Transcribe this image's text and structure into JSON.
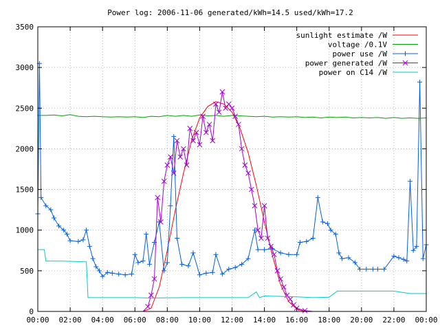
{
  "chart_data": {
    "type": "line",
    "title": "Power log: 2006-11-06 generated/kWh=14.5 used/kWh=17.2",
    "xlabel": "",
    "ylabel": "",
    "xlim": [
      0,
      24
    ],
    "ylim": [
      0,
      3500
    ],
    "x_ticks": [
      {
        "value": 0,
        "label": "00:00"
      },
      {
        "value": 2,
        "label": "02:00"
      },
      {
        "value": 4,
        "label": "04:00"
      },
      {
        "value": 6,
        "label": "06:00"
      },
      {
        "value": 8,
        "label": "08:00"
      },
      {
        "value": 10,
        "label": "10:00"
      },
      {
        "value": 12,
        "label": "12:00"
      },
      {
        "value": 14,
        "label": "14:00"
      },
      {
        "value": 16,
        "label": "16:00"
      },
      {
        "value": 18,
        "label": "18:00"
      },
      {
        "value": 20,
        "label": "20:00"
      },
      {
        "value": 22,
        "label": "22:00"
      },
      {
        "value": 24,
        "label": "00:00"
      }
    ],
    "y_ticks": [
      {
        "value": 0,
        "label": "0"
      },
      {
        "value": 500,
        "label": "500"
      },
      {
        "value": 1000,
        "label": "1000"
      },
      {
        "value": 1500,
        "label": "1500"
      },
      {
        "value": 2000,
        "label": "2000"
      },
      {
        "value": 2500,
        "label": "2500"
      },
      {
        "value": 3000,
        "label": "3000"
      },
      {
        "value": 3500,
        "label": "3500"
      }
    ],
    "grid": true,
    "legend_position": "top-right",
    "series": [
      {
        "name": "sunlight estimate /W",
        "color": "#ff0000",
        "marker": "none",
        "points": [
          [
            0,
            0
          ],
          [
            6.5,
            0
          ],
          [
            7,
            40
          ],
          [
            7.5,
            300
          ],
          [
            8,
            750
          ],
          [
            8.5,
            1250
          ],
          [
            9,
            1700
          ],
          [
            9.5,
            2100
          ],
          [
            10,
            2380
          ],
          [
            10.5,
            2520
          ],
          [
            11,
            2580
          ],
          [
            11.5,
            2550
          ],
          [
            12,
            2450
          ],
          [
            12.5,
            2250
          ],
          [
            13,
            1950
          ],
          [
            13.5,
            1550
          ],
          [
            14,
            1100
          ],
          [
            14.5,
            680
          ],
          [
            15,
            330
          ],
          [
            15.5,
            120
          ],
          [
            16,
            30
          ],
          [
            16.5,
            0
          ],
          [
            24,
            0
          ]
        ]
      },
      {
        "name": "voltage /0.1V",
        "color": "#00a000",
        "marker": "none",
        "points": [
          [
            0,
            2410
          ],
          [
            0.5,
            2410
          ],
          [
            1,
            2415
          ],
          [
            1.5,
            2405
          ],
          [
            2,
            2420
          ],
          [
            2.5,
            2400
          ],
          [
            3,
            2395
          ],
          [
            3.5,
            2400
          ],
          [
            4,
            2395
          ],
          [
            4.5,
            2390
          ],
          [
            5,
            2395
          ],
          [
            5.5,
            2390
          ],
          [
            6,
            2395
          ],
          [
            6.5,
            2385
          ],
          [
            7,
            2400
          ],
          [
            7.5,
            2395
          ],
          [
            8,
            2410
          ],
          [
            8.5,
            2400
          ],
          [
            9,
            2410
          ],
          [
            9.5,
            2400
          ],
          [
            10,
            2415
          ],
          [
            10.5,
            2405
          ],
          [
            11,
            2410
          ],
          [
            11.5,
            2400
          ],
          [
            12,
            2410
          ],
          [
            12.5,
            2405
          ],
          [
            13,
            2400
          ],
          [
            13.5,
            2395
          ],
          [
            14,
            2400
          ],
          [
            14.5,
            2390
          ],
          [
            15,
            2395
          ],
          [
            15.5,
            2390
          ],
          [
            16,
            2395
          ],
          [
            16.5,
            2385
          ],
          [
            17,
            2390
          ],
          [
            17.5,
            2380
          ],
          [
            18,
            2390
          ],
          [
            18.5,
            2385
          ],
          [
            19,
            2390
          ],
          [
            19.5,
            2380
          ],
          [
            20,
            2385
          ],
          [
            20.5,
            2380
          ],
          [
            21,
            2385
          ],
          [
            21.5,
            2375
          ],
          [
            22,
            2385
          ],
          [
            22.5,
            2375
          ],
          [
            23,
            2380
          ],
          [
            23.5,
            2375
          ],
          [
            24,
            2380
          ]
        ]
      },
      {
        "name": "power use /W",
        "color": "#0060e0",
        "marker": "plus",
        "points": [
          [
            0,
            1200
          ],
          [
            0.1,
            3050
          ],
          [
            0.2,
            1400
          ],
          [
            0.5,
            1300
          ],
          [
            0.8,
            1250
          ],
          [
            1,
            1150
          ],
          [
            1.3,
            1050
          ],
          [
            1.6,
            1000
          ],
          [
            1.8,
            950
          ],
          [
            2,
            870
          ],
          [
            2.5,
            860
          ],
          [
            2.8,
            880
          ],
          [
            3,
            1000
          ],
          [
            3.2,
            800
          ],
          [
            3.4,
            650
          ],
          [
            3.6,
            550
          ],
          [
            3.8,
            500
          ],
          [
            4,
            430
          ],
          [
            4.3,
            480
          ],
          [
            4.6,
            470
          ],
          [
            5,
            460
          ],
          [
            5.4,
            450
          ],
          [
            5.8,
            460
          ],
          [
            6,
            700
          ],
          [
            6.2,
            600
          ],
          [
            6.5,
            620
          ],
          [
            6.7,
            950
          ],
          [
            6.9,
            580
          ],
          [
            7.2,
            850
          ],
          [
            7.5,
            1100
          ],
          [
            7.8,
            500
          ],
          [
            8,
            600
          ],
          [
            8.2,
            1300
          ],
          [
            8.4,
            2150
          ],
          [
            8.6,
            900
          ],
          [
            8.9,
            580
          ],
          [
            9.3,
            560
          ],
          [
            9.6,
            720
          ],
          [
            10,
            450
          ],
          [
            10.4,
            470
          ],
          [
            10.8,
            480
          ],
          [
            11,
            700
          ],
          [
            11.4,
            460
          ],
          [
            11.8,
            520
          ],
          [
            12.2,
            540
          ],
          [
            12.6,
            580
          ],
          [
            13,
            650
          ],
          [
            13.4,
            1000
          ],
          [
            13.6,
            760
          ],
          [
            14,
            760
          ],
          [
            14.5,
            770
          ],
          [
            15,
            720
          ],
          [
            15.5,
            700
          ],
          [
            16,
            700
          ],
          [
            16.2,
            850
          ],
          [
            16.6,
            860
          ],
          [
            17,
            900
          ],
          [
            17.3,
            1400
          ],
          [
            17.6,
            1100
          ],
          [
            17.9,
            1080
          ],
          [
            18.1,
            1000
          ],
          [
            18.4,
            950
          ],
          [
            18.6,
            720
          ],
          [
            18.8,
            650
          ],
          [
            19.2,
            660
          ],
          [
            19.6,
            600
          ],
          [
            19.9,
            520
          ],
          [
            20.3,
            520
          ],
          [
            20.7,
            520
          ],
          [
            21,
            520
          ],
          [
            21.4,
            520
          ],
          [
            22,
            680
          ],
          [
            22.3,
            660
          ],
          [
            22.6,
            640
          ],
          [
            22.8,
            620
          ],
          [
            23,
            1600
          ],
          [
            23.2,
            750
          ],
          [
            23.4,
            800
          ],
          [
            23.6,
            2820
          ],
          [
            23.8,
            650
          ],
          [
            24,
            820
          ]
        ]
      },
      {
        "name": "power generated /W",
        "color": "#a000d0",
        "marker": "cross",
        "points": [
          [
            0,
            0
          ],
          [
            6.5,
            0
          ],
          [
            6.8,
            60
          ],
          [
            7,
            200
          ],
          [
            7.2,
            400
          ],
          [
            7.4,
            1400
          ],
          [
            7.6,
            1100
          ],
          [
            7.8,
            1600
          ],
          [
            8,
            1800
          ],
          [
            8.2,
            1900
          ],
          [
            8.4,
            1700
          ],
          [
            8.6,
            2100
          ],
          [
            8.8,
            1900
          ],
          [
            9,
            2000
          ],
          [
            9.2,
            1800
          ],
          [
            9.4,
            2250
          ],
          [
            9.6,
            2100
          ],
          [
            9.8,
            2200
          ],
          [
            10,
            2050
          ],
          [
            10.2,
            2400
          ],
          [
            10.4,
            2200
          ],
          [
            10.6,
            2300
          ],
          [
            10.8,
            2100
          ],
          [
            11,
            2550
          ],
          [
            11.2,
            2450
          ],
          [
            11.4,
            2700
          ],
          [
            11.6,
            2500
          ],
          [
            11.8,
            2550
          ],
          [
            12,
            2500
          ],
          [
            12.2,
            2400
          ],
          [
            12.4,
            2300
          ],
          [
            12.6,
            2000
          ],
          [
            12.8,
            1800
          ],
          [
            13,
            1700
          ],
          [
            13.2,
            1500
          ],
          [
            13.4,
            1300
          ],
          [
            13.6,
            1000
          ],
          [
            13.8,
            900
          ],
          [
            14,
            1300
          ],
          [
            14.2,
            900
          ],
          [
            14.4,
            800
          ],
          [
            14.6,
            700
          ],
          [
            14.8,
            500
          ],
          [
            15,
            400
          ],
          [
            15.2,
            300
          ],
          [
            15.4,
            200
          ],
          [
            15.6,
            150
          ],
          [
            15.8,
            80
          ],
          [
            16,
            40
          ],
          [
            16.5,
            10
          ],
          [
            17,
            0
          ],
          [
            24,
            0
          ]
        ]
      },
      {
        "name": "power on C14 /W",
        "color": "#00c8c8",
        "marker": "none",
        "points": [
          [
            0,
            760
          ],
          [
            0.4,
            760
          ],
          [
            0.5,
            620
          ],
          [
            1.5,
            620
          ],
          [
            3,
            610
          ],
          [
            3.1,
            170
          ],
          [
            6,
            170
          ],
          [
            7,
            165
          ],
          [
            9,
            170
          ],
          [
            11,
            170
          ],
          [
            13,
            170
          ],
          [
            13.5,
            240
          ],
          [
            13.7,
            170
          ],
          [
            14,
            190
          ],
          [
            15,
            185
          ],
          [
            16,
            180
          ],
          [
            17,
            170
          ],
          [
            18,
            175
          ],
          [
            18.5,
            250
          ],
          [
            20,
            250
          ],
          [
            22,
            250
          ],
          [
            23,
            220
          ],
          [
            24,
            220
          ]
        ]
      }
    ]
  }
}
